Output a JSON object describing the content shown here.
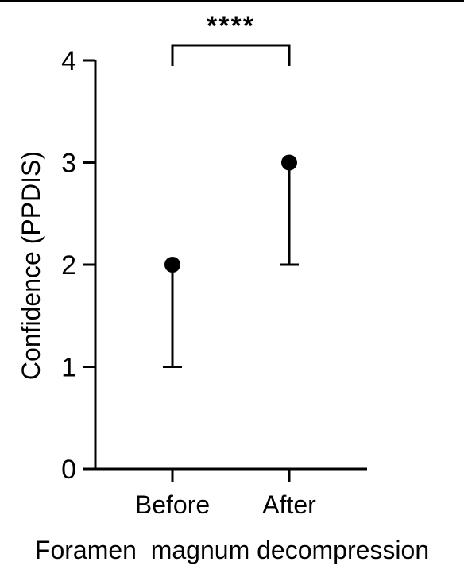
{
  "chart_data": {
    "type": "scatter",
    "title": "",
    "ylabel": "Confidence (PPDIS)",
    "xlabel": "Foramen  magnum decompression",
    "ylim": [
      0,
      4
    ],
    "yticks": [
      0,
      1,
      2,
      3,
      4
    ],
    "categories": [
      "Before",
      "After"
    ],
    "series": [
      {
        "values": [
          2,
          3
        ],
        "error_lower": [
          1,
          2
        ],
        "error_upper": [
          2,
          3
        ]
      }
    ],
    "significance": {
      "between": [
        "Before",
        "After"
      ],
      "label": "****"
    },
    "grid": false,
    "legend": "none",
    "colors": {
      "marker": "#000000",
      "axis": "#000000",
      "background": "#ffffff"
    }
  }
}
